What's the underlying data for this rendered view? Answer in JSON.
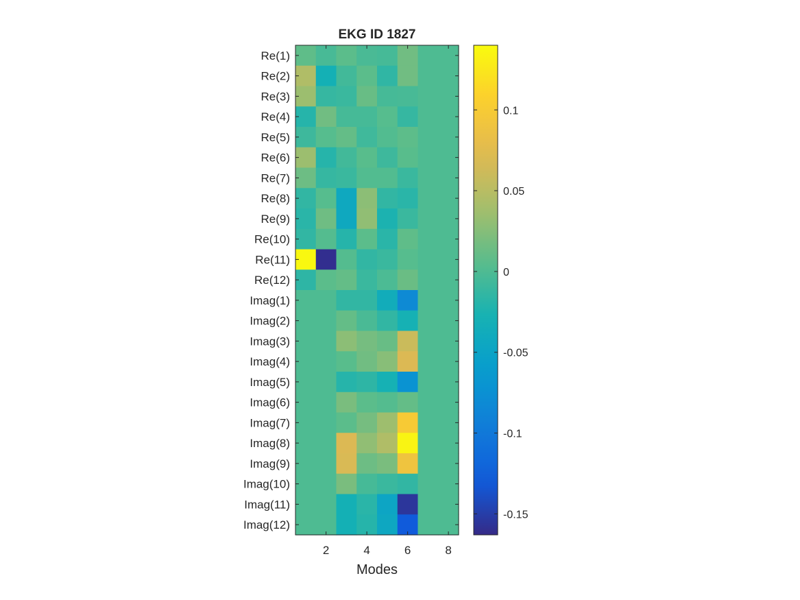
{
  "chart_data": {
    "type": "heatmap",
    "title": "EKG ID 1827",
    "xlabel": "Modes",
    "ylabel": "",
    "x_range": [
      0.5,
      8.5
    ],
    "x_ticks": [
      2,
      4,
      6,
      8
    ],
    "x_tick_labels": [
      "2",
      "4",
      "6",
      "8"
    ],
    "columns": [
      1,
      2,
      3,
      4,
      5,
      6,
      7,
      8
    ],
    "rows": [
      "Re(1)",
      "Re(2)",
      "Re(3)",
      "Re(4)",
      "Re(5)",
      "Re(6)",
      "Re(7)",
      "Re(8)",
      "Re(9)",
      "Re(10)",
      "Re(11)",
      "Re(12)",
      "Imag(1)",
      "Imag(2)",
      "Imag(3)",
      "Imag(4)",
      "Imag(5)",
      "Imag(6)",
      "Imag(7)",
      "Imag(8)",
      "Imag(9)",
      "Imag(10)",
      "Imag(11)",
      "Imag(12)"
    ],
    "values": [
      [
        0.008,
        -0.003,
        0.006,
        -0.002,
        -0.004,
        0.016,
        0,
        0
      ],
      [
        0.045,
        -0.03,
        -0.006,
        0.006,
        -0.015,
        0.016,
        0,
        0
      ],
      [
        0.035,
        -0.012,
        -0.01,
        0.012,
        -0.004,
        -0.003,
        0,
        0
      ],
      [
        -0.02,
        0.016,
        -0.004,
        -0.004,
        0.004,
        -0.012,
        0,
        0
      ],
      [
        -0.008,
        0.004,
        0.01,
        -0.007,
        0.002,
        0.007,
        0,
        0
      ],
      [
        0.035,
        -0.02,
        -0.006,
        0.005,
        -0.008,
        0.005,
        0,
        0
      ],
      [
        0.014,
        -0.012,
        -0.01,
        0.002,
        0.002,
        -0.01,
        0,
        0
      ],
      [
        -0.014,
        0.004,
        -0.042,
        0.028,
        -0.014,
        -0.018,
        0,
        0
      ],
      [
        -0.018,
        0.015,
        -0.042,
        0.03,
        -0.025,
        -0.01,
        0,
        0
      ],
      [
        -0.014,
        0.003,
        -0.02,
        0.006,
        -0.018,
        0.008,
        0,
        0
      ],
      [
        0.138,
        -0.16,
        0.003,
        -0.014,
        -0.01,
        0.004,
        0,
        0
      ],
      [
        -0.016,
        0.006,
        0.01,
        -0.01,
        -0.001,
        0.013,
        0,
        0
      ],
      [
        0,
        0,
        -0.014,
        -0.014,
        -0.036,
        -0.082,
        0,
        0
      ],
      [
        0,
        0,
        0.01,
        -0.002,
        -0.014,
        -0.028,
        0,
        0
      ],
      [
        0,
        0,
        0.028,
        0.018,
        0.012,
        0.06,
        0,
        0
      ],
      [
        0,
        0,
        0.005,
        0.016,
        0.026,
        0.07,
        0,
        0
      ],
      [
        0,
        0,
        -0.02,
        -0.016,
        -0.028,
        -0.072,
        0,
        0
      ],
      [
        0,
        0,
        0.02,
        0.006,
        0.003,
        0.01,
        0,
        0
      ],
      [
        0,
        0,
        0.006,
        0.018,
        0.036,
        0.1,
        0,
        0
      ],
      [
        0,
        0,
        0.07,
        0.03,
        0.045,
        0.135,
        0,
        0
      ],
      [
        0,
        0,
        0.068,
        0.014,
        0.02,
        0.09,
        0,
        0
      ],
      [
        0,
        0,
        0.02,
        -0.004,
        -0.01,
        -0.014,
        0,
        0
      ],
      [
        0,
        0,
        -0.03,
        -0.018,
        -0.048,
        -0.155,
        0,
        0
      ],
      [
        0,
        0,
        -0.03,
        -0.02,
        -0.045,
        -0.13,
        0,
        0
      ]
    ],
    "colormap": "parula",
    "colorbar": {
      "range": [
        -0.163,
        0.14
      ],
      "ticks": [
        -0.15,
        -0.1,
        -0.05,
        0,
        0.05,
        0.1
      ],
      "tick_labels": [
        "-0.15",
        "-0.1",
        "-0.05",
        "0",
        "0.05",
        "0.1"
      ],
      "placement": "right"
    },
    "grid": false,
    "legend": "none"
  }
}
